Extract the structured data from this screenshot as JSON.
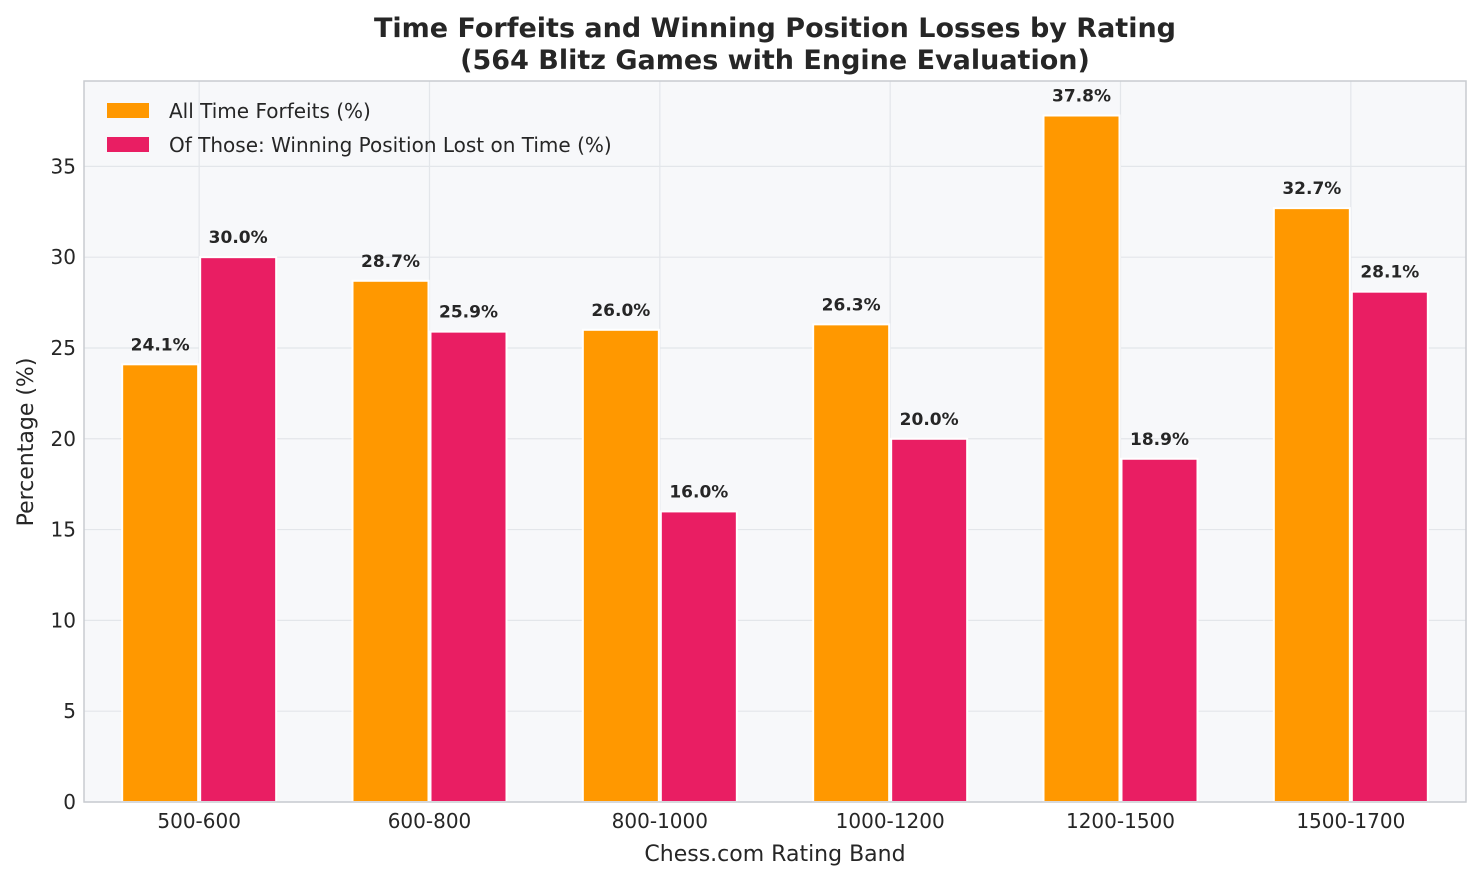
{
  "chart_data": {
    "type": "bar",
    "title": "Time Forfeits and Winning Position Losses by Rating",
    "subtitle": "(564 Blitz Games with Engine Evaluation)",
    "xlabel": "Chess.com Rating Band",
    "ylabel": "Percentage (%)",
    "categories": [
      "500-600",
      "600-800",
      "800-1000",
      "1000-1200",
      "1200-1500",
      "1500-1700"
    ],
    "series": [
      {
        "name": "All Time Forfeits (%)",
        "color": "#FF9800",
        "values": [
          24.1,
          28.7,
          26.0,
          26.3,
          37.8,
          32.7
        ],
        "labels": [
          "24.1%",
          "28.7%",
          "26.0%",
          "26.3%",
          "37.8%",
          "32.7%"
        ]
      },
      {
        "name": "Of Those: Winning Position Lost on Time (%)",
        "color": "#E91E63",
        "values": [
          30.0,
          25.9,
          16.0,
          20.0,
          18.9,
          28.1
        ],
        "labels": [
          "30.0%",
          "25.9%",
          "16.0%",
          "20.0%",
          "18.9%",
          "28.1%"
        ]
      }
    ],
    "ylim": [
      0,
      39.7
    ],
    "yticks": [
      0,
      5,
      10,
      15,
      20,
      25,
      30,
      35
    ],
    "grid": true,
    "legend_position": "top-left",
    "background_color": "#F7F8FA"
  }
}
